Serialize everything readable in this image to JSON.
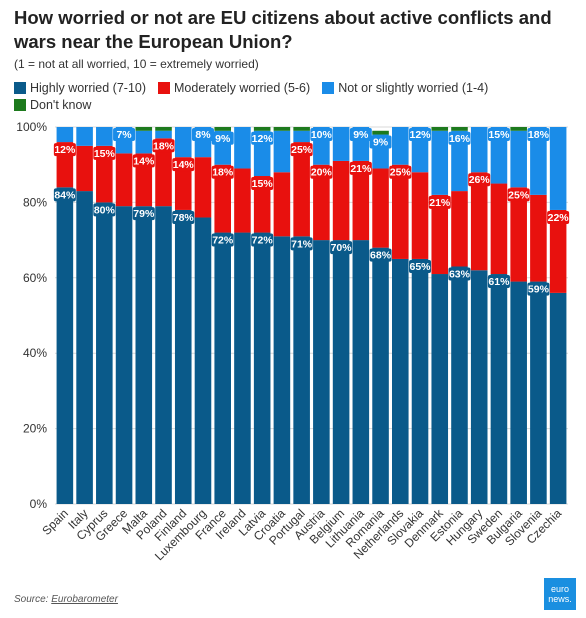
{
  "title": "How worried or not are EU citizens about active conflicts and wars near the European Union?",
  "subtitle": "(1 = not at all worried, 10 = extremely worried)",
  "legend": [
    {
      "name": "Highly worried (7-10)",
      "color": "#0a5a8a"
    },
    {
      "name": "Moderately worried (5-6)",
      "color": "#e8110e"
    },
    {
      "name": "Not or slightly worried (1-4)",
      "color": "#1a8ce8"
    },
    {
      "name": "Don't know",
      "color": "#1d7a1d"
    }
  ],
  "source": {
    "prefix": "Source: ",
    "link": "Eurobarometer"
  },
  "logo": {
    "line1": "euro",
    "line2": "news."
  },
  "chart_data": {
    "type": "bar",
    "stacked": true,
    "categories": [
      "Spain",
      "Italy",
      "Cyprus",
      "Greece",
      "Malta",
      "Poland",
      "Finland",
      "Luxembourg",
      "France",
      "Ireland",
      "Latvia",
      "Croatia",
      "Portugal",
      "Austria",
      "Belgium",
      "Lithuania",
      "Romania",
      "Netherlands",
      "Slovakia",
      "Denmark",
      "Estonia",
      "Hungary",
      "Sweden",
      "Bulgaria",
      "Slovenia",
      "Czechia"
    ],
    "yticks": [
      "0%",
      "20%",
      "40%",
      "60%",
      "80%",
      "100%"
    ],
    "ylim": [
      0,
      100
    ],
    "series": [
      {
        "name": "Highly worried (7-10)",
        "color": "#0a5a8a",
        "values": [
          84,
          83,
          80,
          79,
          79,
          79,
          78,
          76,
          72,
          72,
          72,
          71,
          71,
          70,
          70,
          70,
          68,
          65,
          65,
          61,
          63,
          62,
          61,
          59,
          59,
          56
        ],
        "labels": [
          "84%",
          "",
          "80%",
          "",
          "79%",
          "",
          "78%",
          "",
          "72%",
          "",
          "72%",
          "",
          "71%",
          "",
          "70%",
          "",
          "68%",
          "",
          "65%",
          "",
          "63%",
          "",
          "61%",
          "",
          "59%",
          ""
        ]
      },
      {
        "name": "Moderately worried (5-6)",
        "color": "#e8110e",
        "values": [
          12,
          12,
          15,
          14,
          14,
          18,
          14,
          16,
          18,
          17,
          15,
          17,
          25,
          20,
          21,
          21,
          21,
          25,
          23,
          21,
          20,
          26,
          24,
          25,
          23,
          22
        ],
        "labels": [
          "12%",
          "",
          "15%",
          "",
          "14%",
          "18%",
          "14%",
          "",
          "18%",
          "",
          "15%",
          "",
          "25%",
          "20%",
          "",
          "21%",
          "",
          "25%",
          "",
          "21%",
          "",
          "26%",
          "",
          "25%",
          "",
          "22%"
        ]
      },
      {
        "name": "Not or slightly worried (1-4)",
        "color": "#1a8ce8",
        "values": [
          4,
          5,
          5,
          7,
          6,
          2,
          8,
          8,
          9,
          11,
          12,
          11,
          3,
          10,
          9,
          9,
          9,
          10,
          12,
          17,
          16,
          12,
          15,
          15,
          18,
          22
        ],
        "labels": [
          "",
          "",
          "",
          "7%",
          "",
          "",
          "",
          "8%",
          "9%",
          "",
          "12%",
          "",
          "",
          "10%",
          "",
          "9%",
          "9%",
          "",
          "12%",
          "",
          "16%",
          "",
          "15%",
          "",
          "18%",
          ""
        ]
      },
      {
        "name": "Don't know",
        "color": "#1d7a1d",
        "values": [
          0,
          0,
          0,
          0,
          1,
          1,
          0,
          0,
          1,
          0,
          1,
          1,
          1,
          0,
          0,
          0,
          1,
          0,
          0,
          1,
          1,
          0,
          0,
          1,
          0,
          0
        ],
        "labels": [
          "",
          "",
          "",
          "",
          "",
          "",
          "",
          "",
          "",
          "",
          "",
          "",
          "",
          "",
          "",
          "",
          "",
          "",
          "",
          "",
          "",
          "",
          "",
          "",
          "",
          ""
        ]
      }
    ]
  }
}
